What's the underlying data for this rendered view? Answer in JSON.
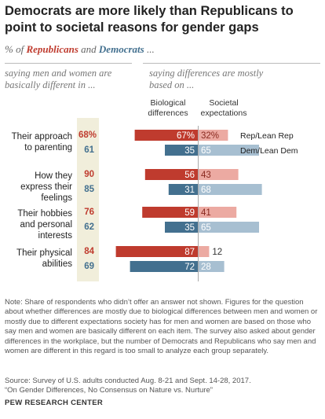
{
  "header": {
    "title": "Democrats are more likely than Republicans to point to societal reasons for gender gaps",
    "subtitle_prefix": "% of ",
    "subtitle_rep": "Republicans",
    "subtitle_and": " and ",
    "subtitle_dem": "Democrats",
    "subtitle_suffix": " ..."
  },
  "column_headers": {
    "left": "saying men and women are basically different in ...",
    "right": "saying differences are mostly based on ...",
    "bio": "Biological differences",
    "soc": "Societal expectations"
  },
  "colors": {
    "rep_dark": "#bf3b2e",
    "rep_light": "#ecaaa2",
    "dem_dark": "#43708f",
    "dem_light": "#a7bfd1",
    "shade": "#f1eedb"
  },
  "chart_data": {
    "type": "bar",
    "categories": [
      "Their approach to parenting",
      "How they express their feelings",
      "Their hobbies and personal interests",
      "Their physical abilities"
    ],
    "series_labels": {
      "rep": "Rep/Lean Rep",
      "dem": "Dem/Lean Dem"
    },
    "basically_different": {
      "rep": [
        "68%",
        90,
        76,
        84
      ],
      "dem": [
        61,
        85,
        62,
        69
      ]
    },
    "biological": {
      "rep": [
        67,
        56,
        59,
        87
      ],
      "dem": [
        35,
        31,
        35,
        72
      ]
    },
    "societal": {
      "rep": [
        32,
        43,
        41,
        12
      ],
      "dem": [
        65,
        68,
        65,
        28
      ]
    },
    "bio_labels": {
      "rep": [
        "67%",
        "56",
        "59",
        "87"
      ],
      "dem": [
        "35",
        "31",
        "35",
        "72"
      ]
    },
    "soc_labels": {
      "rep": [
        "32%",
        "43",
        "41",
        "12"
      ],
      "dem": [
        "65",
        "68",
        "65",
        "28"
      ]
    }
  },
  "footer": {
    "note": "Note: Share of respondents who didn’t offer an answer not shown. Figures for the question about whether differences are mostly due to biological differences between men and women or mostly due to different expectations society has for men and women are based on those who say men and women are basically different on each item. The survey also asked about gender differences in the workplace, but the number of Democrats and Republicans who say men and women are different in this regard is too small to analyze each group separately.",
    "source": "Source: Survey of U.S. adults conducted Aug. 8-21 and Sept. 14-28, 2017.",
    "report": "“On Gender Differences, No Consensus on Nature vs. Nurture”",
    "brand": "PEW RESEARCH CENTER"
  }
}
